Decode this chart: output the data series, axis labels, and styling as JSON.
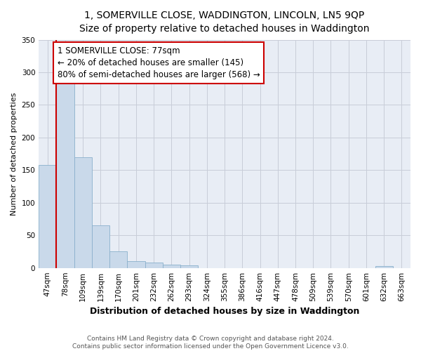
{
  "title": "1, SOMERVILLE CLOSE, WADDINGTON, LINCOLN, LN5 9QP",
  "subtitle": "Size of property relative to detached houses in Waddington",
  "xlabel": "Distribution of detached houses by size in Waddington",
  "ylabel": "Number of detached properties",
  "bar_labels": [
    "47sqm",
    "78sqm",
    "109sqm",
    "139sqm",
    "170sqm",
    "201sqm",
    "232sqm",
    "262sqm",
    "293sqm",
    "324sqm",
    "355sqm",
    "386sqm",
    "416sqm",
    "447sqm",
    "478sqm",
    "509sqm",
    "539sqm",
    "570sqm",
    "601sqm",
    "632sqm",
    "663sqm"
  ],
  "bar_values": [
    158,
    287,
    170,
    65,
    25,
    10,
    8,
    5,
    4,
    0,
    0,
    0,
    0,
    0,
    0,
    0,
    0,
    0,
    0,
    3,
    0
  ],
  "bar_color": "#c9d9ea",
  "bar_edge_color": "#8ab0cc",
  "grid_color": "#c8cdd8",
  "background_color": "#e8edf5",
  "fig_background_color": "#ffffff",
  "vline_color": "#cc0000",
  "annotation_text": "1 SOMERVILLE CLOSE: 77sqm\n← 20% of detached houses are smaller (145)\n80% of semi-detached houses are larger (568) →",
  "annotation_box_color": "#cc0000",
  "ylim": [
    0,
    350
  ],
  "yticks": [
    0,
    50,
    100,
    150,
    200,
    250,
    300,
    350
  ],
  "title_fontsize": 10,
  "subtitle_fontsize": 9,
  "xlabel_fontsize": 9,
  "ylabel_fontsize": 8,
  "tick_fontsize": 7.5,
  "annot_fontsize": 8.5,
  "footer_text": "Contains HM Land Registry data © Crown copyright and database right 2024.\nContains public sector information licensed under the Open Government Licence v3.0."
}
